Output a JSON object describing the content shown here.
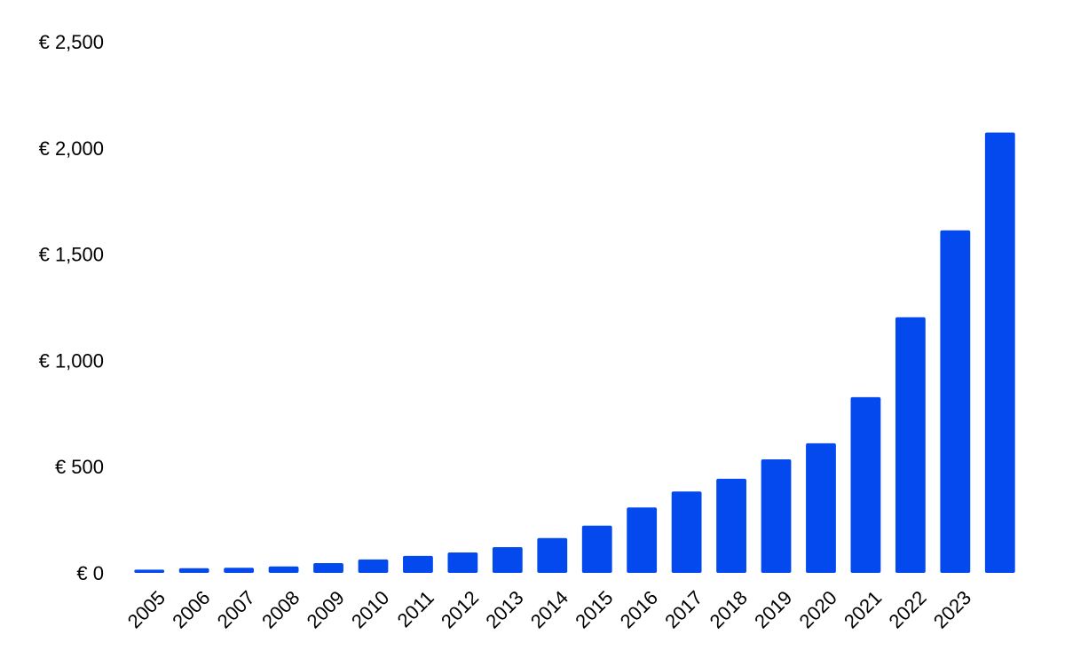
{
  "colors": {
    "bar": "#0349ee",
    "background": "#ffffff",
    "text": "#000000"
  },
  "chart_data": {
    "type": "bar",
    "title": "",
    "xlabel": "",
    "ylabel": "",
    "ylim": [
      0,
      2500
    ],
    "y_ticks": [
      0,
      500,
      1000,
      1500,
      2000,
      2500
    ],
    "y_tick_labels": [
      "€ 0",
      "€ 500",
      "€ 1,000",
      "€ 1,500",
      "€ 2,000",
      "€ 2,500"
    ],
    "categories": [
      "2005",
      "2006",
      "2007",
      "2008",
      "2009",
      "2010",
      "2011",
      "2012",
      "2013",
      "2014",
      "2015",
      "2016",
      "2017",
      "2018",
      "2019",
      "2020",
      "2021",
      "2022",
      "2023",
      ""
    ],
    "values": [
      15,
      22,
      24,
      30,
      46,
      63,
      80,
      96,
      121,
      164,
      222,
      308,
      383,
      443,
      534,
      610,
      827,
      1203,
      1612,
      2072
    ],
    "grid": false,
    "legend": "none"
  }
}
